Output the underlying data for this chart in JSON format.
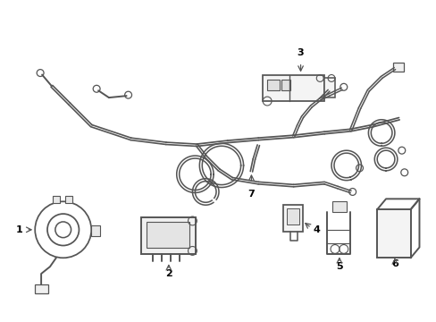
{
  "background_color": "#ffffff",
  "line_color": "#555555",
  "line_width": 1.4,
  "label_color": "#000000",
  "fig_width": 4.89,
  "fig_height": 3.6,
  "dpi": 100
}
